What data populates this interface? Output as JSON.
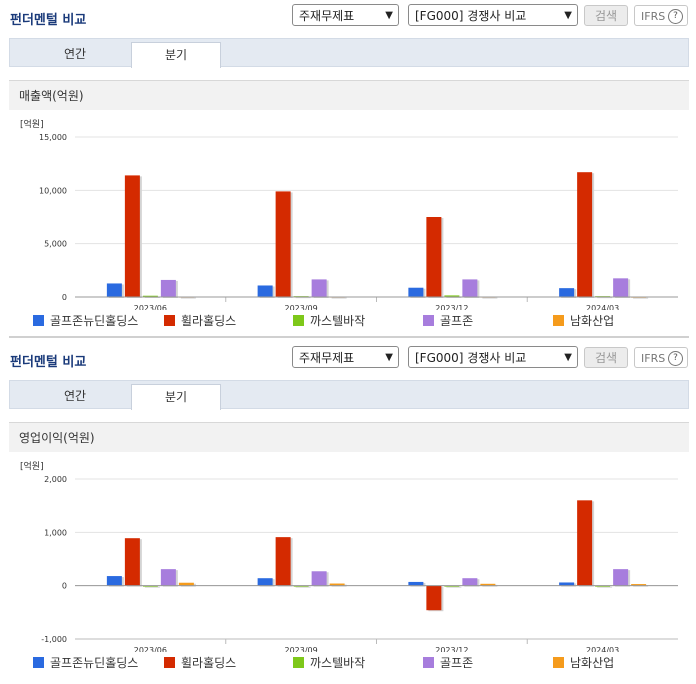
{
  "panels": [
    {
      "header": {
        "title": "펀더멘털 비교",
        "statement_select": "주재무제표",
        "compare_select": "[FG000] 경쟁사 비교",
        "search_label": "검색",
        "ifrs_label": "IFRS",
        "help_label": "?"
      },
      "tabs": [
        {
          "label": "연간"
        },
        {
          "label": "분기"
        }
      ],
      "active_tab": 1,
      "metric_title": "매출액(억원)",
      "chart_data": {
        "type": "bar",
        "title": "매출액(억원)",
        "unit_label": "[억원]",
        "categories": [
          "2023/06",
          "2023/09",
          "2023/12",
          "2024/03"
        ],
        "ylim": [
          0,
          15000
        ],
        "yticks": [
          0,
          5000,
          10000,
          15000
        ],
        "ytick_labels": [
          "0",
          "5,000",
          "10,000",
          "15,000"
        ],
        "grid": true,
        "legend_position": "bottom",
        "series": [
          {
            "name": "골프존뉴딘홀딩스",
            "color": "#2a6ae0",
            "values": [
              1270,
              1080,
              870,
              830
            ]
          },
          {
            "name": "휠라홀딩스",
            "color": "#d42a00",
            "values": [
              11400,
              9900,
              7500,
              11700
            ]
          },
          {
            "name": "까스텔바작",
            "color": "#7ec81a",
            "values": [
              120,
              80,
              150,
              80
            ]
          },
          {
            "name": "골프존",
            "color": "#a77ddd",
            "values": [
              1600,
              1650,
              1650,
              1750
            ]
          },
          {
            "name": "남화산업",
            "color": "#f59b1c",
            "values": [
              40,
              40,
              40,
              30
            ]
          }
        ]
      }
    },
    {
      "header": {
        "title": "펀더멘털 비교",
        "statement_select": "주재무제표",
        "compare_select": "[FG000] 경쟁사 비교",
        "search_label": "검색",
        "ifrs_label": "IFRS",
        "help_label": "?"
      },
      "tabs": [
        {
          "label": "연간"
        },
        {
          "label": "분기"
        }
      ],
      "active_tab": 1,
      "metric_title": "영업이익(억원)",
      "chart_data": {
        "type": "bar",
        "title": "영업이익(억원)",
        "unit_label": "[억원]",
        "categories": [
          "2023/06",
          "2023/09",
          "2023/12",
          "2024/03"
        ],
        "ylim": [
          -1000,
          2000
        ],
        "yticks": [
          -1000,
          0,
          1000,
          2000
        ],
        "ytick_labels": [
          "-1,000",
          "0",
          "1,000",
          "2,000"
        ],
        "grid": true,
        "legend_position": "bottom",
        "series": [
          {
            "name": "골프존뉴딘홀딩스",
            "color": "#2a6ae0",
            "values": [
              180,
              140,
              70,
              60
            ]
          },
          {
            "name": "휠라홀딩스",
            "color": "#d42a00",
            "values": [
              890,
              910,
              -460,
              1600
            ]
          },
          {
            "name": "까스텔바작",
            "color": "#7ec81a",
            "values": [
              -10,
              -10,
              -15,
              -10
            ]
          },
          {
            "name": "골프존",
            "color": "#a77ddd",
            "values": [
              310,
              270,
              140,
              310
            ]
          },
          {
            "name": "남화산업",
            "color": "#f59b1c",
            "values": [
              55,
              40,
              35,
              30
            ]
          }
        ]
      }
    }
  ]
}
